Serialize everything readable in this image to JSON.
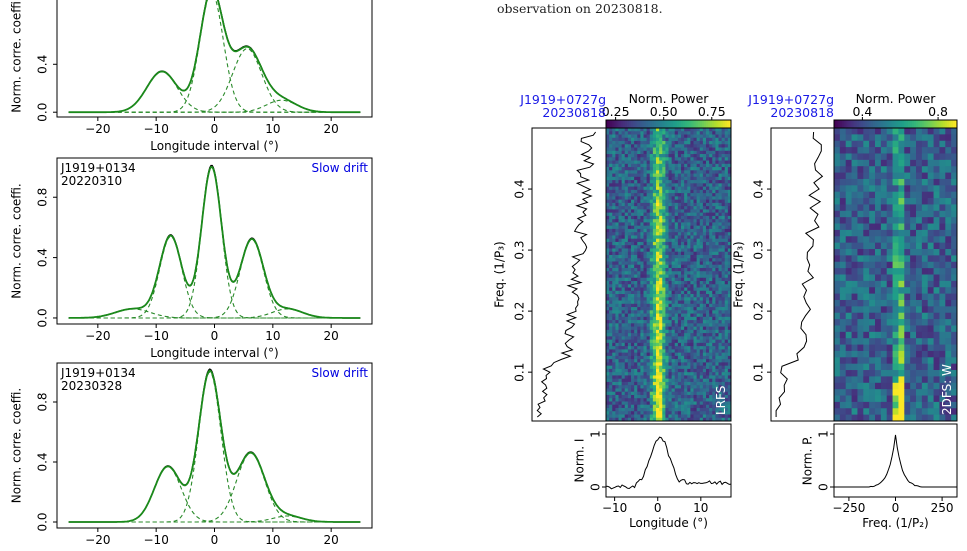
{
  "caption": {
    "line1": "",
    "line2": "observation on 20230818."
  },
  "chart_data": [
    {
      "type": "line",
      "id": "acf1",
      "title": "",
      "xlabel": "Longitude interval (°)",
      "ylabel": "Norm. corre. coeffi.",
      "xlim": [
        -27,
        27
      ],
      "ylim": [
        -0.04,
        1.02
      ],
      "xticks": [
        -20,
        -10,
        0,
        10,
        20
      ],
      "yticks": [
        0.0,
        0.4
      ],
      "components": [
        {
          "amp": 0.34,
          "mu": -9,
          "sigma": 2.6
        },
        {
          "amp": 1.0,
          "mu": -0.5,
          "sigma": 2.0
        },
        {
          "amp": 0.53,
          "mu": 5.6,
          "sigma": 2.5
        },
        {
          "amp": 0.1,
          "mu": 11.5,
          "sigma": 2.6
        }
      ]
    },
    {
      "type": "line",
      "id": "acf2",
      "psr": "J1919+0134",
      "date": "20220310",
      "label": "Slow drift",
      "xlabel": "Longitude interval (°)",
      "ylabel": "Norm. corre. coeffi.",
      "xlim": [
        -27,
        27
      ],
      "ylim": [
        -0.04,
        1.06
      ],
      "xticks": [
        -20,
        -10,
        0,
        10,
        20
      ],
      "yticks": [
        0.0,
        0.4,
        0.8
      ],
      "components": [
        {
          "amp": 0.54,
          "mu": -7.5,
          "sigma": 1.9
        },
        {
          "amp": 1.0,
          "mu": -0.5,
          "sigma": 1.7
        },
        {
          "amp": 0.52,
          "mu": 6.4,
          "sigma": 2.0
        },
        {
          "amp": 0.06,
          "mu": -14,
          "sigma": 3.0
        },
        {
          "amp": 0.06,
          "mu": 12.5,
          "sigma": 2.6
        }
      ]
    },
    {
      "type": "line",
      "id": "acf3",
      "psr": "J1919+0134",
      "date": "20230328",
      "label": "Slow drift",
      "xlabel": "",
      "ylabel": "Norm. corre. coeffi.",
      "xlim": [
        -27,
        27
      ],
      "ylim": [
        -0.04,
        1.06
      ],
      "xticks": [
        -20,
        -10,
        0,
        10,
        20
      ],
      "yticks": [
        0.0,
        0.4,
        0.8
      ],
      "components": [
        {
          "amp": 0.37,
          "mu": -8,
          "sigma": 2.3
        },
        {
          "amp": 1.0,
          "mu": -0.8,
          "sigma": 1.9
        },
        {
          "amp": 0.46,
          "mu": 6.2,
          "sigma": 2.4
        },
        {
          "amp": 0.04,
          "mu": 12.5,
          "sigma": 2.5
        }
      ]
    },
    {
      "type": "heatmap",
      "id": "lrfs",
      "psr": "J1919+0727g",
      "date": "20230818",
      "colorbar_label": "Norm. Power",
      "colorbar_ticks": [
        0.25,
        0.5,
        0.75
      ],
      "colorbar_range": [
        0.2,
        0.85
      ],
      "panel_label": "LRFS",
      "ylabel": "Freq. (1/P₃)",
      "yticks": [
        0.1,
        0.2,
        0.3,
        0.4
      ],
      "ylim": [
        0.02,
        0.5
      ],
      "xlabel": "Longitude (°)",
      "xticks": [
        -10,
        0,
        10
      ],
      "xlim": [
        -12,
        17
      ],
      "bottom_ylabel": "Norm. I",
      "bottom_yticks": [
        0,
        1
      ]
    },
    {
      "type": "heatmap",
      "id": "2dfs",
      "psr": "J1919+0727g",
      "date": "20230818",
      "colorbar_label": "Norm. Power",
      "colorbar_ticks": [
        0.4,
        0.8
      ],
      "colorbar_range": [
        0.25,
        0.9
      ],
      "panel_label": "2DFS: W",
      "ylabel": "Freq. (1/P₃)",
      "yticks": [
        0.1,
        0.2,
        0.3,
        0.4
      ],
      "ylim": [
        0.02,
        0.5
      ],
      "xlabel": "Freq. (1/P₂)",
      "xticks": [
        -250,
        0,
        250
      ],
      "xlim": [
        -330,
        330
      ],
      "bottom_ylabel": "Norm. P.",
      "bottom_yticks": [
        0,
        1
      ]
    }
  ]
}
